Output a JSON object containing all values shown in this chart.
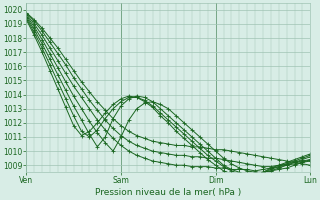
{
  "title": "",
  "xlabel": "Pression niveau de la mer( hPa )",
  "ylabel": "",
  "background_color": "#d8ede6",
  "grid_color": "#a0c4b4",
  "line_color": "#1a6620",
  "ylim": [
    1008.5,
    1020.5
  ],
  "yticks": [
    1009,
    1010,
    1011,
    1012,
    1013,
    1014,
    1015,
    1016,
    1017,
    1018,
    1019,
    1020
  ],
  "xtick_labels": [
    "Ven",
    "Sam",
    "Dim",
    "Lun"
  ],
  "xtick_positions": [
    0,
    48,
    96,
    144
  ],
  "x_total": 144,
  "lines": [
    [
      1019.8,
      1019.3,
      1018.7,
      1018.0,
      1017.3,
      1016.5,
      1015.7,
      1014.9,
      1014.2,
      1013.5,
      1012.9,
      1012.3,
      1011.8,
      1011.4,
      1011.1,
      1010.9,
      1010.7,
      1010.6,
      1010.5,
      1010.4,
      1010.4,
      1010.3,
      1010.3,
      1010.2,
      1010.1,
      1010.1,
      1010.0,
      1009.9,
      1009.8,
      1009.7,
      1009.6,
      1009.5,
      1009.4,
      1009.3,
      1009.2,
      1009.1,
      1009.0
    ],
    [
      1019.8,
      1019.2,
      1018.5,
      1017.7,
      1016.9,
      1016.1,
      1015.2,
      1014.4,
      1013.6,
      1012.9,
      1012.2,
      1011.6,
      1011.1,
      1010.7,
      1010.4,
      1010.2,
      1010.0,
      1009.9,
      1009.8,
      1009.7,
      1009.7,
      1009.6,
      1009.6,
      1009.5,
      1009.5,
      1009.4,
      1009.3,
      1009.2,
      1009.1,
      1009.0,
      1008.9,
      1008.9,
      1009.0,
      1009.1,
      1009.2,
      1009.3,
      1009.4
    ],
    [
      1019.7,
      1019.0,
      1018.2,
      1017.3,
      1016.4,
      1015.5,
      1014.6,
      1013.8,
      1013.0,
      1012.2,
      1011.5,
      1010.9,
      1010.4,
      1010.0,
      1009.7,
      1009.5,
      1009.3,
      1009.2,
      1009.1,
      1009.0,
      1009.0,
      1008.9,
      1008.9,
      1008.9,
      1008.8,
      1008.8,
      1008.7,
      1008.7,
      1008.7,
      1008.6,
      1008.7,
      1008.8,
      1008.9,
      1009.0,
      1009.1,
      1009.2,
      1009.3
    ],
    [
      1019.6,
      1018.8,
      1017.9,
      1016.9,
      1015.9,
      1014.9,
      1013.9,
      1013.0,
      1012.1,
      1011.3,
      1010.6,
      1010.0,
      1011.0,
      1012.2,
      1013.0,
      1013.4,
      1013.5,
      1013.3,
      1013.0,
      1012.5,
      1012.0,
      1011.5,
      1011.0,
      1010.5,
      1010.0,
      1009.5,
      1009.1,
      1008.8,
      1008.6,
      1008.5,
      1008.5,
      1008.6,
      1008.7,
      1008.8,
      1009.0,
      1009.2,
      1009.4
    ],
    [
      1019.5,
      1018.6,
      1017.6,
      1016.5,
      1015.4,
      1014.3,
      1013.2,
      1012.2,
      1011.2,
      1010.3,
      1011.0,
      1012.3,
      1013.2,
      1013.7,
      1013.9,
      1013.8,
      1013.5,
      1013.0,
      1012.5,
      1012.0,
      1011.5,
      1011.0,
      1010.5,
      1010.0,
      1009.5,
      1009.0,
      1008.7,
      1008.5,
      1008.4,
      1008.4,
      1008.5,
      1008.6,
      1008.8,
      1009.0,
      1009.2,
      1009.4,
      1009.6
    ],
    [
      1019.4,
      1018.4,
      1017.3,
      1016.1,
      1014.9,
      1013.7,
      1012.5,
      1011.4,
      1011.0,
      1011.5,
      1012.3,
      1013.0,
      1013.5,
      1013.8,
      1013.8,
      1013.6,
      1013.2,
      1012.7,
      1012.2,
      1011.7,
      1011.2,
      1010.7,
      1010.2,
      1009.7,
      1009.3,
      1008.9,
      1008.6,
      1008.4,
      1008.3,
      1008.4,
      1008.5,
      1008.7,
      1008.9,
      1009.1,
      1009.3,
      1009.5,
      1009.7
    ],
    [
      1019.3,
      1018.2,
      1017.0,
      1015.7,
      1014.4,
      1013.1,
      1011.8,
      1011.1,
      1011.4,
      1012.0,
      1012.7,
      1013.3,
      1013.7,
      1013.9,
      1013.8,
      1013.5,
      1013.1,
      1012.5,
      1012.0,
      1011.4,
      1010.9,
      1010.4,
      1009.9,
      1009.4,
      1009.0,
      1008.6,
      1008.4,
      1008.3,
      1008.3,
      1008.4,
      1008.5,
      1008.8,
      1009.0,
      1009.2,
      1009.4,
      1009.6,
      1009.8
    ]
  ]
}
